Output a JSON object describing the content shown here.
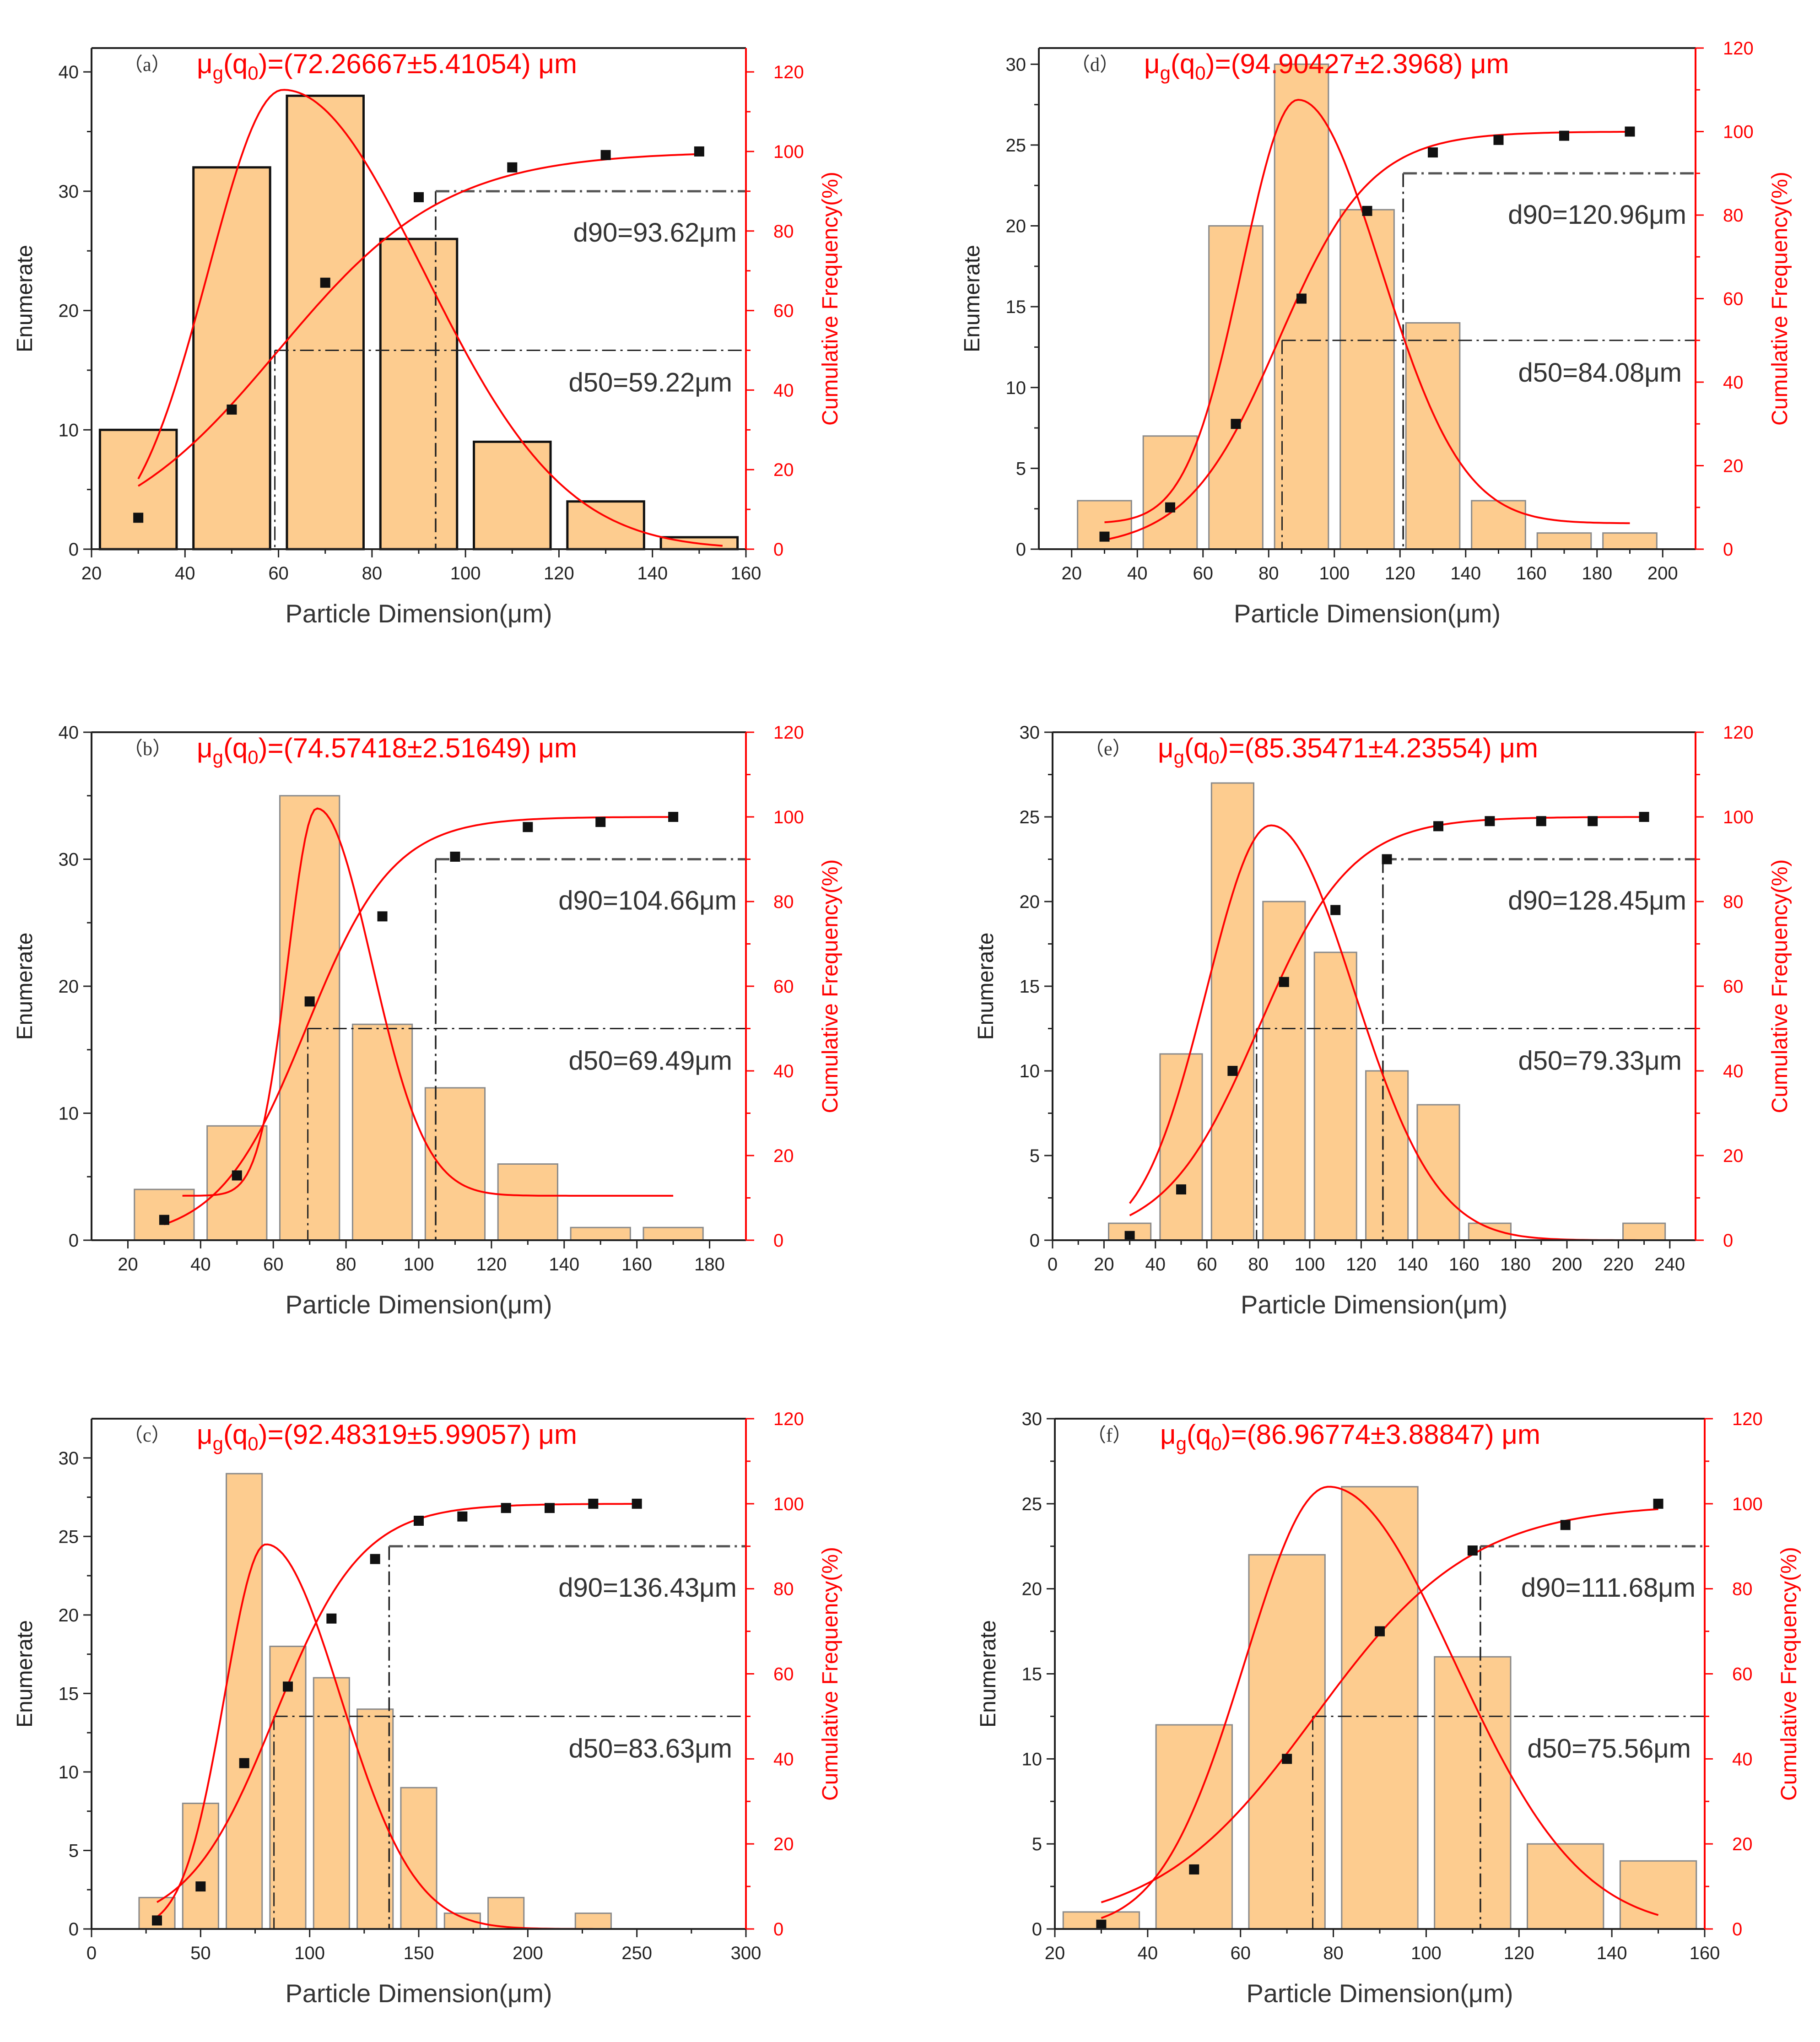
{
  "figure": {
    "xlabel": "Particle Dimension(μm)",
    "ylabel_left": "Enumerate",
    "ylabel_right": "Cumulative Frequency(%)",
    "colors": {
      "bar_fill": "#fdcc8f",
      "bar_stroke_bold": "#111111",
      "bar_stroke_light": "#8a8a8a",
      "curve": "#ff0000",
      "axis_left": "#222222",
      "axis_right": "#ff0000",
      "ref_line": "#222222",
      "cum_point": "#111111"
    }
  },
  "chart_data": [
    {
      "id": "a",
      "letter": "（a）",
      "type": "bar",
      "bold_bars": true,
      "x": [
        30,
        50,
        70,
        90,
        110,
        130,
        150
      ],
      "counts": [
        10,
        32,
        38,
        26,
        9,
        4,
        1
      ],
      "bin_width": 20,
      "cumulative": [
        7.9,
        35.1,
        67.0,
        88.5,
        96.0,
        99.1,
        100
      ],
      "mu_main": "μ",
      "mu_sub_g": "g",
      "mu_arg": "(q",
      "mu_sub_0": "0",
      "mu_rest": ")=(72.26667±5.41054)  μm",
      "d50_label": "d50=59.22μm",
      "d90_label": "d90=93.62μm",
      "d50": 59.22,
      "d90": 93.62,
      "xlim": [
        20,
        160
      ],
      "xticks": [
        20,
        40,
        60,
        80,
        100,
        120,
        140,
        160
      ],
      "ylim": [
        0,
        42
      ],
      "yticks": [
        0,
        10,
        20,
        30,
        40
      ],
      "y2lim": [
        0,
        126
      ],
      "y2ticks": [
        0,
        20,
        40,
        60,
        80,
        100,
        120
      ],
      "fit_x": [
        30,
        155
      ],
      "fit_peak_x": 61,
      "fit_peak_y": 38.5,
      "fit_left_sigma": 16,
      "fit_right_sigma": 30,
      "fit_baseline": 0,
      "cum_fit_center": 60,
      "cum_fit_scale": 18
    },
    {
      "id": "b",
      "letter": "（b）",
      "type": "bar",
      "bold_bars": false,
      "x": [
        30,
        50,
        70,
        90,
        110,
        130,
        150,
        170
      ],
      "counts": [
        4,
        9,
        35,
        17,
        12,
        6,
        1,
        1
      ],
      "bin_width": 20,
      "cumulative": [
        4.8,
        15.3,
        56.4,
        76.5,
        90.6,
        97.6,
        98.8,
        100
      ],
      "mu_main": "μ",
      "mu_sub_g": "g",
      "mu_arg": "(q",
      "mu_sub_0": "0",
      "mu_rest": ")=(74.57418±2.51649)  μm",
      "d50_label": "d50=69.49μm",
      "d90_label": "d90=104.66μm",
      "d50": 69.49,
      "d90": 104.66,
      "xlim": [
        10,
        190
      ],
      "xticks": [
        20,
        40,
        60,
        80,
        100,
        120,
        140,
        160,
        180
      ],
      "ylim": [
        0,
        40
      ],
      "yticks": [
        0,
        10,
        20,
        30,
        40
      ],
      "y2lim": [
        0,
        120
      ],
      "y2ticks": [
        0,
        20,
        40,
        60,
        80,
        100,
        120
      ],
      "fit_x": [
        35,
        170
      ],
      "fit_peak_x": 72,
      "fit_peak_y": 34,
      "fit_left_sigma": 8,
      "fit_right_sigma": 15,
      "fit_baseline": 3.5,
      "cum_fit_center": 69,
      "cum_fit_scale": 12
    },
    {
      "id": "c",
      "letter": "（c）",
      "type": "bar",
      "bold_bars": false,
      "x": [
        30,
        50,
        70,
        90,
        110,
        130,
        150,
        170,
        190,
        210,
        230,
        250
      ],
      "counts": [
        2,
        8,
        29,
        18,
        16,
        14,
        9,
        1,
        2,
        0,
        1,
        0
      ],
      "bin_width": 20,
      "cumulative": [
        2,
        10,
        39,
        57,
        73,
        87,
        96,
        97,
        99,
        99,
        100,
        100
      ],
      "mu_main": "μ",
      "mu_sub_g": "g",
      "mu_arg": "(q",
      "mu_sub_0": "0",
      "mu_rest": ")=(92.48319±5.99057)  μm",
      "d50_label": "d50=83.63μm",
      "d90_label": "d90=136.43μm",
      "d50": 83.63,
      "d90": 136.43,
      "xlim": [
        0,
        300
      ],
      "xticks": [
        0,
        50,
        100,
        150,
        200,
        250,
        300
      ],
      "ylim": [
        0,
        32.5
      ],
      "yticks": [
        0,
        5,
        10,
        15,
        20,
        25,
        30
      ],
      "y2lim": [
        0,
        120
      ],
      "y2ticks": [
        0,
        20,
        40,
        60,
        80,
        100,
        120
      ],
      "fit_x": [
        28,
        250
      ],
      "fit_peak_x": 80,
      "fit_peak_y": 24.5,
      "fit_left_sigma": 19,
      "fit_right_sigma": 34,
      "fit_baseline": 0,
      "cum_fit_center": 84,
      "cum_fit_scale": 20
    },
    {
      "id": "d",
      "letter": "（d）",
      "type": "bar",
      "bold_bars": false,
      "x": [
        30,
        50,
        70,
        90,
        110,
        130,
        150,
        170,
        190
      ],
      "counts": [
        3,
        7,
        20,
        30,
        21,
        14,
        3,
        1,
        1
      ],
      "bin_width": 20,
      "cumulative": [
        3,
        10,
        30,
        60,
        81,
        95,
        98,
        99,
        100
      ],
      "mu_main": "μ",
      "mu_sub_g": "g",
      "mu_arg": "(q",
      "mu_sub_0": "0",
      "mu_rest": ")=(94.90427±2.3968)  μm",
      "d50_label": "d50=84.08μm",
      "d90_label": "d90=120.96μm",
      "d50": 84.08,
      "d90": 120.96,
      "xlim": [
        10,
        210
      ],
      "xticks": [
        20,
        40,
        60,
        80,
        100,
        120,
        140,
        160,
        180,
        200
      ],
      "ylim": [
        0,
        31
      ],
      "yticks": [
        0,
        5,
        10,
        15,
        20,
        25,
        30
      ],
      "y2lim": [
        0,
        120
      ],
      "y2ticks": [
        0,
        20,
        40,
        60,
        80,
        100,
        120
      ],
      "fit_x": [
        30,
        190
      ],
      "fit_peak_x": 89,
      "fit_peak_y": 27.8,
      "fit_left_sigma": 17,
      "fit_right_sigma": 25,
      "fit_baseline": 1.6,
      "cum_fit_center": 83,
      "cum_fit_scale": 14
    },
    {
      "id": "e",
      "letter": "（e）",
      "type": "bar",
      "bold_bars": false,
      "x": [
        30,
        50,
        70,
        90,
        110,
        130,
        150,
        170,
        190,
        210,
        230
      ],
      "counts": [
        1,
        11,
        27,
        20,
        17,
        10,
        8,
        1,
        0,
        0,
        1
      ],
      "bin_width": 20,
      "cumulative": [
        1,
        12,
        40,
        61,
        78,
        90,
        97.8,
        99,
        99,
        99,
        100
      ],
      "mu_main": "μ",
      "mu_sub_g": "g",
      "mu_arg": "(q",
      "mu_sub_0": "0",
      "mu_rest": ")=(85.35471±4.23554)  μm",
      "d50_label": "d50=79.33μm",
      "d90_label": "d90=128.45μm",
      "d50": 79.33,
      "d90": 128.45,
      "xlim": [
        0,
        250
      ],
      "xticks": [
        0,
        20,
        40,
        60,
        80,
        100,
        120,
        140,
        160,
        180,
        200,
        220,
        240
      ],
      "ylim": [
        0,
        30
      ],
      "yticks": [
        0,
        5,
        10,
        15,
        20,
        25,
        30
      ],
      "y2lim": [
        0,
        120
      ],
      "y2ticks": [
        0,
        20,
        40,
        60,
        80,
        100,
        120
      ],
      "fit_x": [
        30,
        230
      ],
      "fit_peak_x": 85,
      "fit_peak_y": 24.5,
      "fit_left_sigma": 25,
      "fit_right_sigma": 32,
      "fit_baseline": 0,
      "cum_fit_center": 80,
      "cum_fit_scale": 18
    },
    {
      "id": "f",
      "letter": "（f）",
      "type": "bar",
      "bold_bars": false,
      "x": [
        30,
        50,
        70,
        90,
        110,
        130,
        150
      ],
      "counts": [
        1,
        12,
        22,
        26,
        16,
        5,
        4
      ],
      "bin_width": 20,
      "cumulative": [
        1,
        14,
        40,
        70,
        89,
        95,
        100
      ],
      "mu_main": "μ",
      "mu_sub_g": "g",
      "mu_arg": "(q",
      "mu_sub_0": "0",
      "mu_rest": ")=(86.96774±3.88847)  μm",
      "d50_label": "d50=75.56μm",
      "d90_label": "d90=111.68μm",
      "d50": 75.56,
      "d90": 111.68,
      "xlim": [
        20,
        160
      ],
      "xticks": [
        20,
        40,
        60,
        80,
        100,
        120,
        140,
        160
      ],
      "ylim": [
        0,
        30
      ],
      "yticks": [
        0,
        5,
        10,
        15,
        20,
        25,
        30
      ],
      "y2lim": [
        0,
        120
      ],
      "y2ticks": [
        0,
        20,
        40,
        60,
        80,
        100,
        120
      ],
      "fit_x": [
        30,
        150
      ],
      "fit_peak_x": 79,
      "fit_peak_y": 26,
      "fit_left_sigma": 18,
      "fit_right_sigma": 27,
      "fit_baseline": 0,
      "cum_fit_center": 76,
      "cum_fit_scale": 17
    }
  ]
}
